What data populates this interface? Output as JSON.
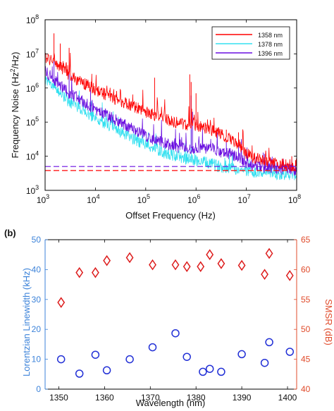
{
  "chart_data": [
    {
      "type": "line",
      "panel_label": "",
      "xlabel": "Offset Frequency (Hz)",
      "ylabel_main": "Frequency Noise (Hz",
      "ylabel_sup": "2",
      "ylabel_tail": "/Hz)",
      "x_scale": "log",
      "y_scale": "log",
      "xlim": [
        1000,
        100000000
      ],
      "ylim": [
        1000,
        100000000
      ],
      "x_ticks": [
        {
          "base": "10",
          "exp": "3"
        },
        {
          "base": "10",
          "exp": "4"
        },
        {
          "base": "10",
          "exp": "5"
        },
        {
          "base": "10",
          "exp": "6"
        },
        {
          "base": "10",
          "exp": "7"
        },
        {
          "base": "10",
          "exp": "8"
        }
      ],
      "y_ticks": [
        {
          "base": "10",
          "exp": "3"
        },
        {
          "base": "10",
          "exp": "4"
        },
        {
          "base": "10",
          "exp": "5"
        },
        {
          "base": "10",
          "exp": "6"
        },
        {
          "base": "10",
          "exp": "7"
        },
        {
          "base": "10",
          "exp": "8"
        }
      ],
      "legend_position": "top-right",
      "series": [
        {
          "name": "1358 nm",
          "color": "#ff0000",
          "x": [
            1000,
            1500,
            2000,
            3000,
            5000,
            7000,
            10000,
            20000,
            30000,
            50000,
            70000,
            100000,
            200000,
            300000,
            500000,
            700000,
            1000000,
            2000000,
            3000000,
            5000000,
            7000000,
            10000000,
            20000000,
            30000000,
            50000000,
            100000000
          ],
          "y": [
            8000000,
            6000000,
            4000000,
            2500000,
            1500000,
            1200000,
            900000,
            550000,
            420000,
            320000,
            260000,
            200000,
            140000,
            110000,
            90000,
            85000,
            80000,
            60000,
            45000,
            30000,
            22000,
            12000,
            7500,
            6500,
            5800,
            5500
          ],
          "dashed_level": 3800,
          "spikes": [
            [
              1500,
              40000000
            ],
            [
              2000,
              20000000
            ],
            [
              3000,
              15000000
            ],
            [
              150000,
              2000000
            ],
            [
              750000,
              2500000
            ],
            [
              800000,
              1500000
            ],
            [
              1000000,
              700000
            ],
            [
              4000000,
              60000
            ],
            [
              7000000,
              50000
            ],
            [
              80000000,
              10000
            ]
          ]
        },
        {
          "name": "1378 nm",
          "color": "#33e0f0",
          "x": [
            1000,
            1500,
            2000,
            3000,
            5000,
            7000,
            10000,
            20000,
            30000,
            50000,
            70000,
            100000,
            200000,
            300000,
            500000,
            700000,
            1000000,
            2000000,
            3000000,
            5000000,
            7000000,
            10000000,
            20000000,
            30000000,
            50000000,
            100000000
          ],
          "y": [
            1600000,
            1000000,
            700000,
            400000,
            250000,
            180000,
            130000,
            75000,
            52000,
            36000,
            28000,
            22000,
            14000,
            11000,
            9000,
            8000,
            7500,
            6000,
            5000,
            4500,
            4000,
            3700,
            3400,
            3200,
            3000,
            2900
          ],
          "dashed_level": 0,
          "spikes": [
            [
              1500,
              2000000
            ],
            [
              3000,
              700000
            ],
            [
              800000,
              60000
            ],
            [
              80000000,
              6000
            ]
          ]
        },
        {
          "name": "1396 nm",
          "color": "#6a0fe0",
          "x": [
            1000,
            1500,
            2000,
            3000,
            5000,
            7000,
            10000,
            20000,
            30000,
            50000,
            70000,
            100000,
            200000,
            300000,
            500000,
            700000,
            1000000,
            2000000,
            3000000,
            5000000,
            7000000,
            10000000,
            20000000,
            30000000,
            50000000,
            100000000
          ],
          "y": [
            3000000,
            1800000,
            1200000,
            700000,
            450000,
            320000,
            240000,
            140000,
            100000,
            70000,
            55000,
            40000,
            26000,
            21000,
            18000,
            17000,
            18000,
            17000,
            14000,
            11000,
            9000,
            6500,
            5000,
            4500,
            4200,
            4000
          ],
          "dashed_level": 5000,
          "spikes": [
            [
              1500,
              6000000
            ],
            [
              3000,
              3500000
            ],
            [
              8000,
              1000000
            ],
            [
              800000,
              600000
            ],
            [
              850000,
              200000
            ],
            [
              4000000,
              30000
            ],
            [
              7000000,
              30000
            ],
            [
              80000000,
              8000
            ]
          ]
        }
      ]
    },
    {
      "type": "scatter",
      "panel_label": "(b)",
      "xlabel": "Wavelength (nm)",
      "ylabel_left": "Lorentzian Linewidth (kHz)",
      "ylabel_right": "SMSR (dB)",
      "xlim": [
        1347,
        1402
      ],
      "ylim_left": [
        0,
        50
      ],
      "ylim_right": [
        40,
        65
      ],
      "x_ticks": [
        1350,
        1360,
        1370,
        1380,
        1390,
        1400
      ],
      "y_ticks_left": [
        0,
        10,
        20,
        30,
        40,
        50
      ],
      "y_ticks_right": [
        40,
        45,
        50,
        55,
        60,
        65
      ],
      "left_color": "#3b82d9",
      "right_color": "#e04b2b",
      "series": [
        {
          "name": "",
          "axis": "left",
          "marker": "circle",
          "color": "#2230d6",
          "x": [
            1350.5,
            1354.5,
            1358,
            1360.5,
            1365.5,
            1370.5,
            1375.5,
            1378,
            1381.5,
            1383,
            1385.5,
            1390,
            1395,
            1396,
            1400.5
          ],
          "y": [
            10,
            5.2,
            11.5,
            6.3,
            10,
            14,
            18.7,
            10.8,
            5.8,
            6.8,
            5.8,
            11.7,
            8.8,
            15.7,
            12.5
          ]
        },
        {
          "name": "",
          "axis": "right",
          "marker": "diamond",
          "color": "#dd1c1c",
          "x": [
            1350.5,
            1354.5,
            1358,
            1360.5,
            1365.5,
            1370.5,
            1375.5,
            1378,
            1381,
            1383,
            1385.5,
            1390,
            1395,
            1396,
            1400.5
          ],
          "y": [
            54.5,
            59.5,
            59.5,
            61.5,
            62,
            60.8,
            60.8,
            60.5,
            60.5,
            62.5,
            61,
            60.7,
            59.2,
            62.7,
            59
          ]
        }
      ]
    }
  ]
}
